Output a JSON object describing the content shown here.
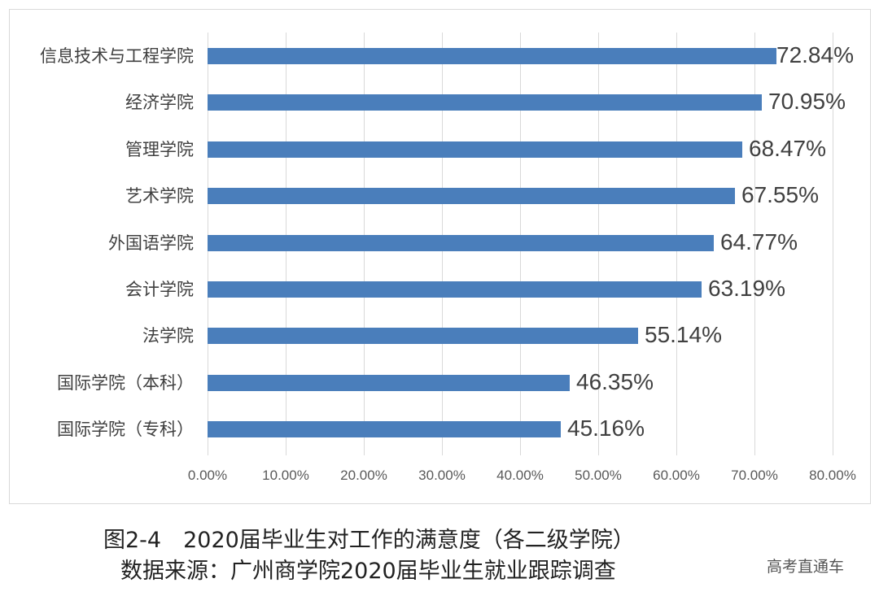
{
  "chart_data": {
    "type": "bar",
    "orientation": "horizontal",
    "categories": [
      "信息技术与工程学院",
      "经济学院",
      "管理学院",
      "艺术学院",
      "外国语学院",
      "会计学院",
      "法学院",
      "国际学院（本科）",
      "国际学院（专科）"
    ],
    "values": [
      72.84,
      70.95,
      68.47,
      67.55,
      64.77,
      63.19,
      55.14,
      46.35,
      45.16
    ],
    "value_labels": [
      "72.84%",
      "70.95%",
      "68.47%",
      "67.55%",
      "64.77%",
      "63.19%",
      "55.14%",
      "46.35%",
      "45.16%"
    ],
    "title": "图2-4　2020届毕业生对工作的满意度（各二级学院）",
    "xlabel": "",
    "ylabel": "",
    "xlim": [
      0,
      80
    ],
    "x_ticks": [
      "0.00%",
      "10.00%",
      "20.00%",
      "30.00%",
      "40.00%",
      "50.00%",
      "60.00%",
      "70.00%",
      "80.00%"
    ],
    "grid": "vertical",
    "legend": "none",
    "bar_color": "#4a7ebb"
  },
  "caption": {
    "title": "图2-4　2020届毕业生对工作的满意度（各二级学院）",
    "source": "数据来源：广州商学院2020届毕业生就业跟踪调查"
  },
  "watermark": "高考直通车"
}
